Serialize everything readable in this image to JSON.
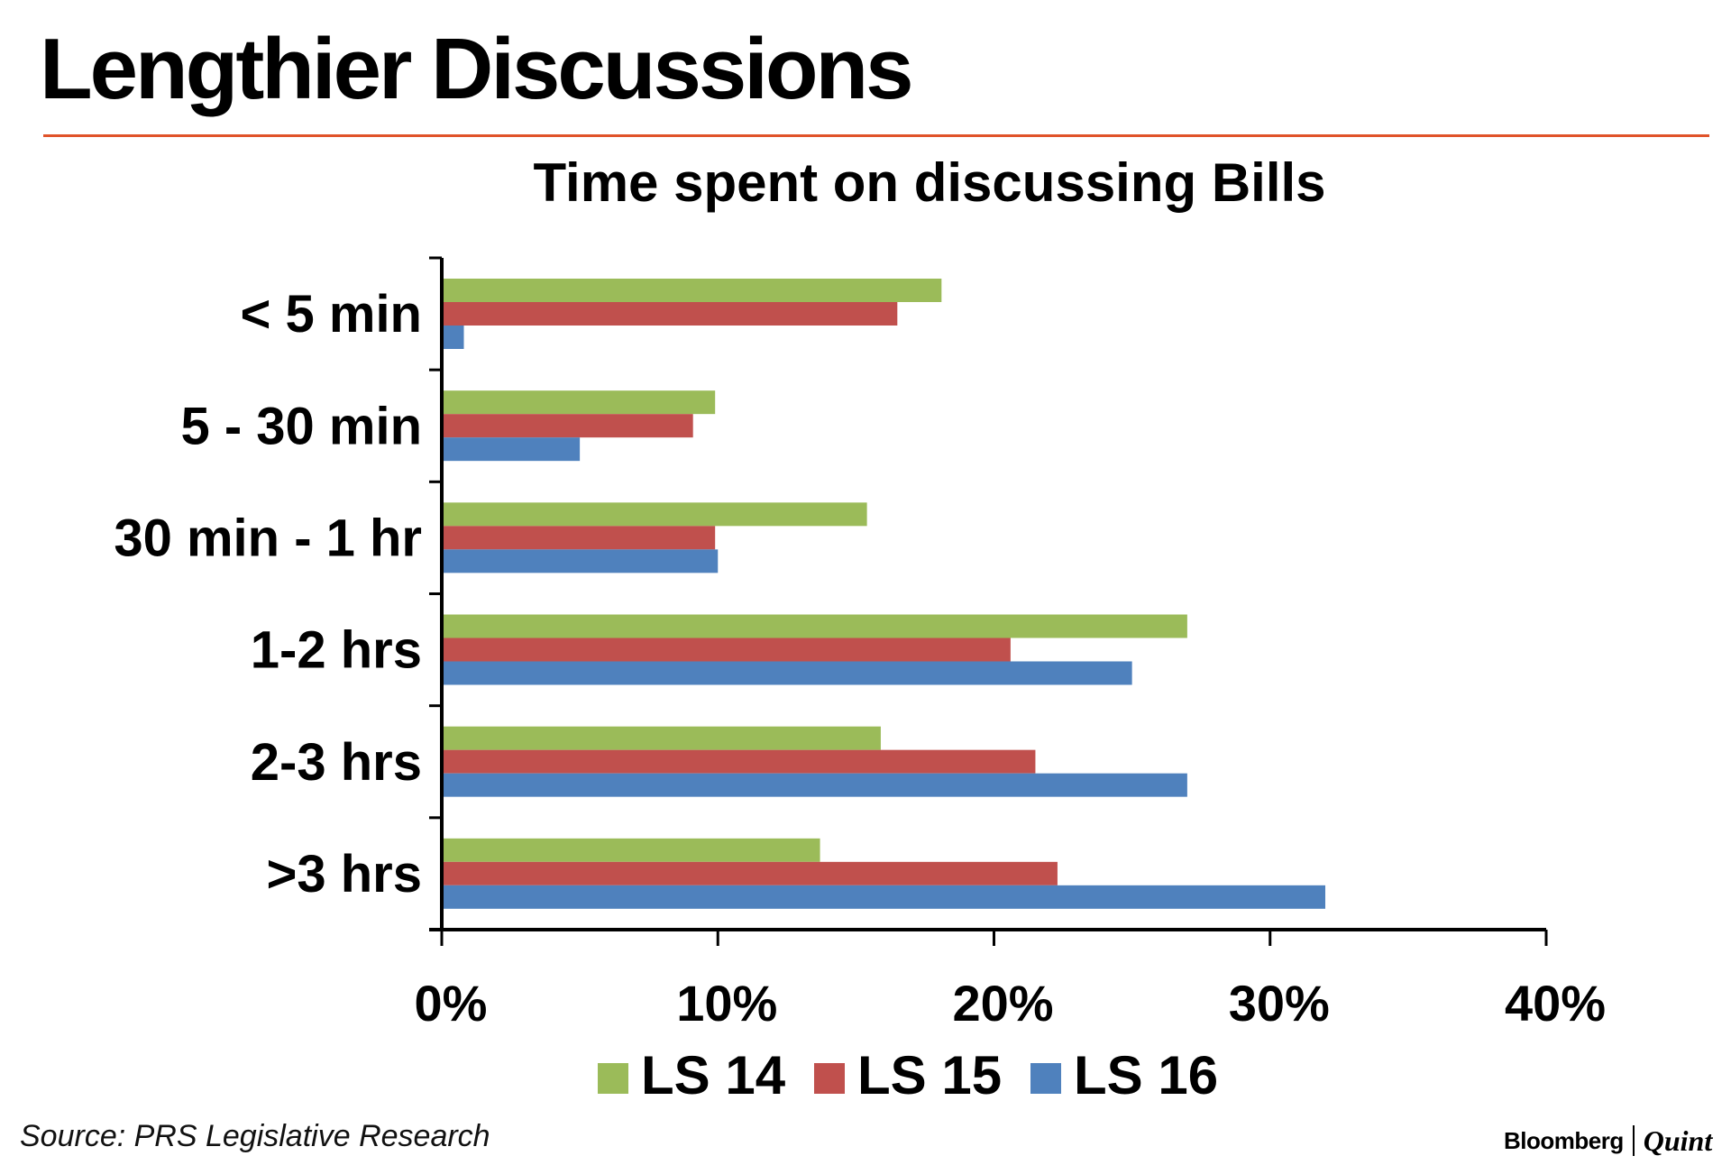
{
  "headline": "Lengthier Discussions",
  "colors": {
    "rule": "#e0532a",
    "axis": "#000000",
    "series": [
      "#9bbb59",
      "#c0504d",
      "#4f81bd"
    ]
  },
  "chart_data": {
    "type": "bar",
    "orientation": "horizontal",
    "title": "Time spent on discussing Bills",
    "categories": [
      "< 5 min",
      "5 - 30 min",
      "30 min - 1 hr",
      "1-2 hrs",
      "2-3 hrs",
      ">3 hrs"
    ],
    "series": [
      {
        "name": "LS 14",
        "values": [
          18.1,
          9.9,
          15.4,
          27.0,
          15.9,
          13.7
        ]
      },
      {
        "name": "LS 15",
        "values": [
          16.5,
          9.1,
          9.9,
          20.6,
          21.5,
          22.3
        ]
      },
      {
        "name": "LS 16",
        "values": [
          0.8,
          5.0,
          10.0,
          25.0,
          27.0,
          32.0
        ]
      }
    ],
    "xlim": [
      0,
      40
    ],
    "xticks": [
      0,
      10,
      20,
      30,
      40
    ],
    "xtick_labels": [
      "0%",
      "10%",
      "20%",
      "30%",
      "40%"
    ],
    "grid": false,
    "legend_position": "bottom-center"
  },
  "source": "Source: PRS Legislative Research",
  "brand": {
    "primary": "Bloomberg",
    "secondary": "Quint"
  }
}
